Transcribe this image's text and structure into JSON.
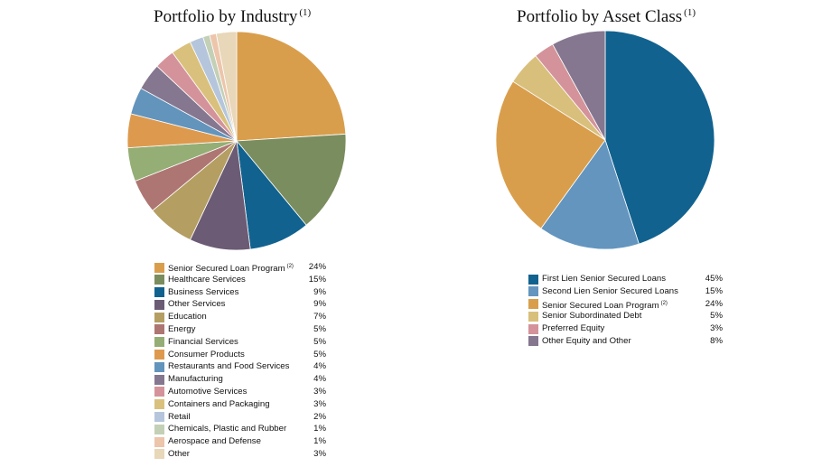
{
  "chart_data": [
    {
      "type": "pie",
      "title": "Portfolio by Industry",
      "title_note": "(1)",
      "slices": [
        {
          "label": "Senior Secured Loan Program",
          "note": "(2)",
          "value": 24,
          "display": "24%",
          "color": "#D99E4C"
        },
        {
          "label": "Healthcare Services",
          "note": "",
          "value": 15,
          "display": "15%",
          "color": "#7A8D5E"
        },
        {
          "label": "Business Services",
          "note": "",
          "value": 9,
          "display": "9%",
          "color": "#11628F"
        },
        {
          "label": "Other Services",
          "note": "",
          "value": 9,
          "display": "9%",
          "color": "#6B5B74"
        },
        {
          "label": "Education",
          "note": "",
          "value": 7,
          "display": "7%",
          "color": "#B49E62"
        },
        {
          "label": "Energy",
          "note": "",
          "value": 5,
          "display": "5%",
          "color": "#AE7672"
        },
        {
          "label": "Financial Services",
          "note": "",
          "value": 5,
          "display": "5%",
          "color": "#94AE75"
        },
        {
          "label": "Consumer Products",
          "note": "",
          "value": 5,
          "display": "5%",
          "color": "#DD9A4E"
        },
        {
          "label": "Restaurants and Food Services",
          "note": "",
          "value": 4,
          "display": "4%",
          "color": "#6394BC"
        },
        {
          "label": "Manufacturing",
          "note": "",
          "value": 4,
          "display": "4%",
          "color": "#85778F"
        },
        {
          "label": "Automotive Services",
          "note": "",
          "value": 3,
          "display": "3%",
          "color": "#D4939A"
        },
        {
          "label": "Containers and Packaging",
          "note": "",
          "value": 3,
          "display": "3%",
          "color": "#D9C17D"
        },
        {
          "label": "Retail",
          "note": "",
          "value": 2,
          "display": "2%",
          "color": "#B5C6DC"
        },
        {
          "label": "Chemicals, Plastic and Rubber",
          "note": "",
          "value": 1,
          "display": "1%",
          "color": "#C3D0B6"
        },
        {
          "label": "Aerospace and Defense",
          "note": "",
          "value": 1,
          "display": "1%",
          "color": "#ECC5AB"
        },
        {
          "label": "Other",
          "note": "",
          "value": 3,
          "display": "3%",
          "color": "#E8D7B8"
        }
      ]
    },
    {
      "type": "pie",
      "title": "Portfolio by Asset Class",
      "title_note": "(1)",
      "slices": [
        {
          "label": "First Lien Senior Secured Loans",
          "note": "",
          "value": 45,
          "display": "45%",
          "color": "#11628F"
        },
        {
          "label": "Second Lien Senior Secured Loans",
          "note": "",
          "value": 15,
          "display": "15%",
          "color": "#6395BF"
        },
        {
          "label": "Senior Secured Loan Program",
          "note": "(2)",
          "value": 24,
          "display": "24%",
          "color": "#D99E4C"
        },
        {
          "label": "Senior Subordinated Debt",
          "note": "",
          "value": 5,
          "display": "5%",
          "color": "#D9BF7C"
        },
        {
          "label": "Preferred Equity",
          "note": "",
          "value": 3,
          "display": "3%",
          "color": "#D4939A"
        },
        {
          "label": "Other Equity and Other",
          "note": "",
          "value": 8,
          "display": "8%",
          "color": "#85778F"
        }
      ]
    }
  ]
}
